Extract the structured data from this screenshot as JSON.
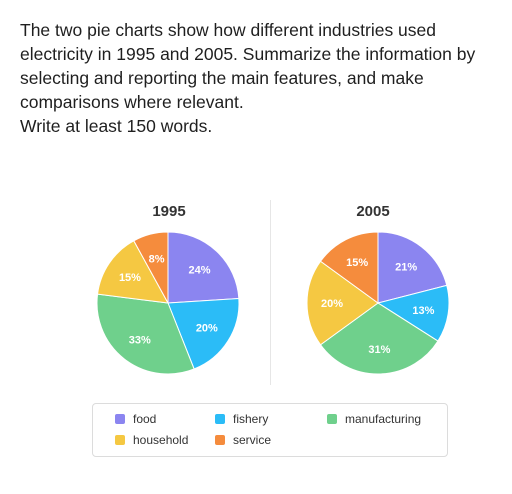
{
  "prompt": {
    "paragraph": "The two pie charts show how different industries used electricity in 1995 and 2005. Summarize the information by selecting and reporting the main features, and make comparisons where relevant.",
    "instruction": "Write at least 150 words."
  },
  "chart_data": [
    {
      "type": "pie",
      "title": "1995",
      "slices": [
        {
          "label": "food",
          "value": 24,
          "text": "24%",
          "color": "#8b85f0"
        },
        {
          "label": "fishery",
          "value": 20,
          "text": "20%",
          "color": "#2bbcf7"
        },
        {
          "label": "manufacturing",
          "value": 33,
          "text": "33%",
          "color": "#6fd08c"
        },
        {
          "label": "household",
          "value": 15,
          "text": "15%",
          "color": "#f5c842"
        },
        {
          "label": "service",
          "value": 8,
          "text": "8%",
          "color": "#f58c3d"
        }
      ]
    },
    {
      "type": "pie",
      "title": "2005",
      "slices": [
        {
          "label": "food",
          "value": 21,
          "text": "21%",
          "color": "#8b85f0"
        },
        {
          "label": "fishery",
          "value": 13,
          "text": "13%",
          "color": "#2bbcf7"
        },
        {
          "label": "manufacturing",
          "value": 31,
          "text": "31%",
          "color": "#6fd08c"
        },
        {
          "label": "household",
          "value": 20,
          "text": "20%",
          "color": "#f5c842"
        },
        {
          "label": "service",
          "value": 15,
          "text": "15%",
          "color": "#f58c3d"
        }
      ]
    }
  ],
  "legend": [
    {
      "label": "food",
      "color": "#8b85f0"
    },
    {
      "label": "fishery",
      "color": "#2bbcf7"
    },
    {
      "label": "manufacturing",
      "color": "#6fd08c"
    },
    {
      "label": "household",
      "color": "#f5c842"
    },
    {
      "label": "service",
      "color": "#f58c3d"
    }
  ]
}
